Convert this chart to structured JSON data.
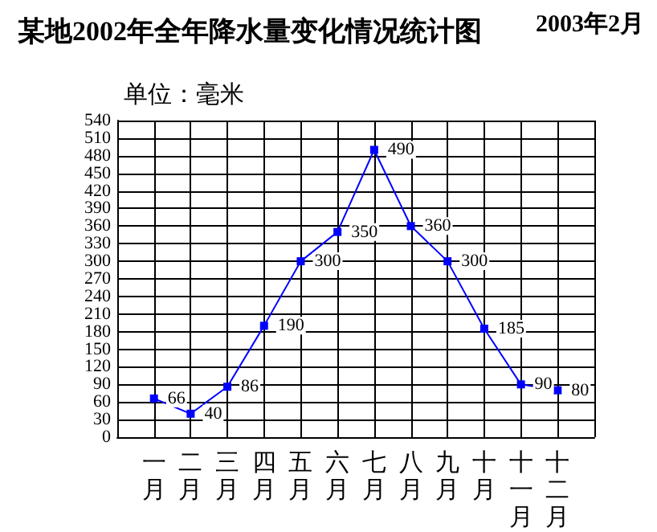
{
  "chart_data": {
    "type": "line",
    "title": "某地2002年全年降水量变化情况统计图",
    "ylabel": "单位：毫米",
    "annotations": [
      "2003年2月"
    ],
    "categories": [
      "一月",
      "二月",
      "三月",
      "四月",
      "五月",
      "六月",
      "七月",
      "八月",
      "九月",
      "十月",
      "十一月",
      "十二月"
    ],
    "series": [
      {
        "color": "#0000ff",
        "values": [
          66,
          40,
          86,
          190,
          300,
          350,
          490,
          360,
          300,
          185,
          90,
          80
        ]
      }
    ],
    "ylim": [
      0,
      540
    ],
    "yticks": [
      0,
      30,
      60,
      90,
      120,
      150,
      180,
      210,
      240,
      270,
      300,
      330,
      360,
      390,
      420,
      450,
      480,
      510,
      540
    ],
    "grid": true,
    "data_labels": true,
    "marker": "square",
    "line_style": "solid"
  }
}
